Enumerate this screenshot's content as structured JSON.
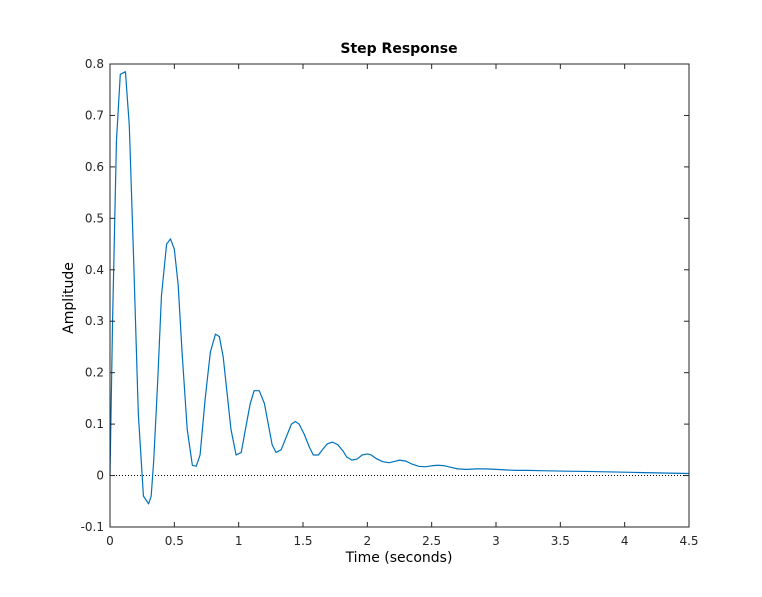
{
  "chart_data": {
    "type": "line",
    "title": "Step Response",
    "xlabel": "Time (seconds)",
    "ylabel": "Amplitude",
    "xlim": [
      0,
      4.5
    ],
    "ylim": [
      -0.1,
      0.8
    ],
    "xticks": [
      0,
      0.5,
      1,
      1.5,
      2,
      2.5,
      3,
      3.5,
      4,
      4.5
    ],
    "xtick_labels": [
      "0",
      "0.5",
      "1",
      "1.5",
      "2",
      "2.5",
      "3",
      "3.5",
      "4",
      "4.5"
    ],
    "yticks": [
      -0.1,
      0,
      0.1,
      0.2,
      0.3,
      0.4,
      0.5,
      0.6,
      0.7,
      0.8
    ],
    "ytick_labels": [
      "-0.1",
      "0",
      "0.1",
      "0.2",
      "0.3",
      "0.4",
      "0.5",
      "0.6",
      "0.7",
      "0.8"
    ],
    "grid": false,
    "reference_line": {
      "y": 0,
      "style": "dotted",
      "color": "#000000"
    },
    "series": [
      {
        "color": "#0072bd",
        "x": [
          0,
          0.02,
          0.05,
          0.08,
          0.12,
          0.15,
          0.18,
          0.22,
          0.26,
          0.3,
          0.32,
          0.34,
          0.37,
          0.4,
          0.44,
          0.47,
          0.5,
          0.53,
          0.56,
          0.6,
          0.64,
          0.67,
          0.7,
          0.74,
          0.78,
          0.82,
          0.85,
          0.88,
          0.91,
          0.94,
          0.98,
          1.02,
          1.06,
          1.09,
          1.12,
          1.16,
          1.2,
          1.23,
          1.26,
          1.29,
          1.33,
          1.37,
          1.41,
          1.44,
          1.47,
          1.51,
          1.55,
          1.58,
          1.62,
          1.65,
          1.69,
          1.73,
          1.77,
          1.81,
          1.84,
          1.88,
          1.92,
          1.96,
          2.0,
          2.03,
          2.07,
          2.12,
          2.17,
          2.22,
          2.25,
          2.3,
          2.35,
          2.4,
          2.45,
          2.5,
          2.55,
          2.6,
          2.65,
          2.7,
          2.77,
          2.85,
          2.92,
          3.0,
          3.07,
          3.15,
          3.25,
          3.35,
          3.45,
          3.55,
          3.7,
          3.9,
          4.1,
          4.3,
          4.5
        ],
        "y": [
          0.0,
          0.3,
          0.65,
          0.78,
          0.785,
          0.68,
          0.45,
          0.12,
          -0.04,
          -0.055,
          -0.04,
          0.03,
          0.18,
          0.35,
          0.45,
          0.46,
          0.44,
          0.37,
          0.24,
          0.09,
          0.02,
          0.018,
          0.04,
          0.15,
          0.24,
          0.275,
          0.27,
          0.23,
          0.16,
          0.09,
          0.04,
          0.045,
          0.1,
          0.14,
          0.165,
          0.165,
          0.14,
          0.1,
          0.06,
          0.045,
          0.05,
          0.075,
          0.1,
          0.105,
          0.1,
          0.08,
          0.055,
          0.04,
          0.04,
          0.05,
          0.062,
          0.065,
          0.06,
          0.048,
          0.036,
          0.03,
          0.032,
          0.04,
          0.042,
          0.04,
          0.033,
          0.027,
          0.025,
          0.028,
          0.03,
          0.028,
          0.022,
          0.018,
          0.017,
          0.019,
          0.02,
          0.019,
          0.016,
          0.013,
          0.012,
          0.013,
          0.013,
          0.012,
          0.011,
          0.01,
          0.01,
          0.0095,
          0.009,
          0.0085,
          0.008,
          0.007,
          0.006,
          0.005,
          0.004
        ]
      }
    ]
  }
}
